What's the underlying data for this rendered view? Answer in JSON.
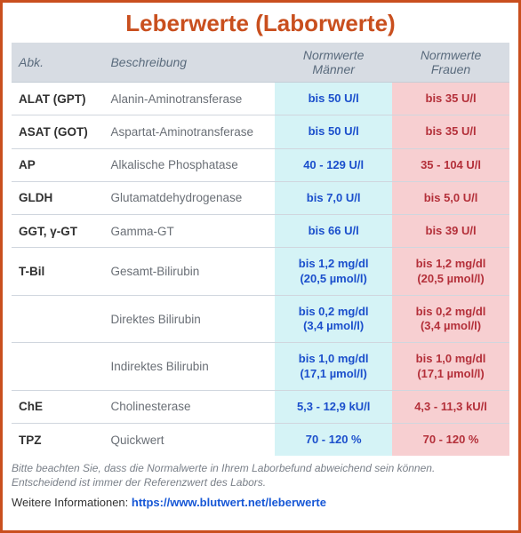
{
  "title": "Leberwerte (Laborwerte)",
  "columns": {
    "abk": "Abk.",
    "desc": "Beschreibung",
    "male": "Normwerte Männer",
    "female": "Normwerte Frauen"
  },
  "rows": [
    {
      "abk": "ALAT (GPT)",
      "desc": "Alanin-Aminotransferase",
      "male": "bis 50 U/l",
      "female": "bis 35 U/l"
    },
    {
      "abk": "ASAT (GOT)",
      "desc": "Aspartat-Aminotransferase",
      "male": "bis 50 U/l",
      "female": "bis 35 U/l"
    },
    {
      "abk": "AP",
      "desc": "Alkalische Phosphatase",
      "male": "40 - 129 U/l",
      "female": "35 - 104 U/l"
    },
    {
      "abk": "GLDH",
      "desc": "Glutamatdehydrogenase",
      "male": "bis 7,0 U/l",
      "female": "bis 5,0 U/l"
    },
    {
      "abk": "GGT, γ-GT",
      "desc": "Gamma-GT",
      "male": "bis 66 U/l",
      "female": "bis 39 U/l"
    },
    {
      "abk": "T-Bil",
      "desc": "Gesamt-Bilirubin",
      "male": "bis 1,2 mg/dl",
      "male2": "(20,5 µmol/l)",
      "female": "bis 1,2 mg/dl",
      "female2": "(20,5 µmol/l)"
    },
    {
      "abk": "",
      "desc": "Direktes Bilirubin",
      "male": "bis 0,2 mg/dl",
      "male2": "(3,4 µmol/l)",
      "female": "bis 0,2 mg/dl",
      "female2": "(3,4 µmol/l)"
    },
    {
      "abk": "",
      "desc": "Indirektes Bilirubin",
      "male": "bis 1,0 mg/dl",
      "male2": "(17,1 µmol/l)",
      "female": "bis 1,0 mg/dl",
      "female2": "(17,1 µmol/l)"
    },
    {
      "abk": "ChE",
      "desc": "Cholinesterase",
      "male": "5,3 - 12,9 kU/l",
      "female": "4,3 - 11,3 kU/l"
    },
    {
      "abk": "TPZ",
      "desc": "Quickwert",
      "male": "70 - 120 %",
      "female": "70 - 120 %"
    }
  ],
  "footnote_l1": "Bitte beachten Sie, dass die Normalwerte in Ihrem Laborbefund abweichend sein können.",
  "footnote_l2": "Entscheidend ist immer der Referenzwert des Labors.",
  "moreinfo_label": "Weitere Informationen: ",
  "moreinfo_url": "https://www.blutwert.net/leberwerte",
  "colors": {
    "border": "#c94f1e",
    "title": "#c94f1e",
    "header_bg": "#d7dce3",
    "header_text": "#5a6b7d",
    "male_bg": "#d5f3f6",
    "male_text": "#1b4fcc",
    "female_bg": "#f7cfd1",
    "female_text": "#b4303a",
    "desc_text": "#6a6f76",
    "row_border": "#d0d6de"
  }
}
